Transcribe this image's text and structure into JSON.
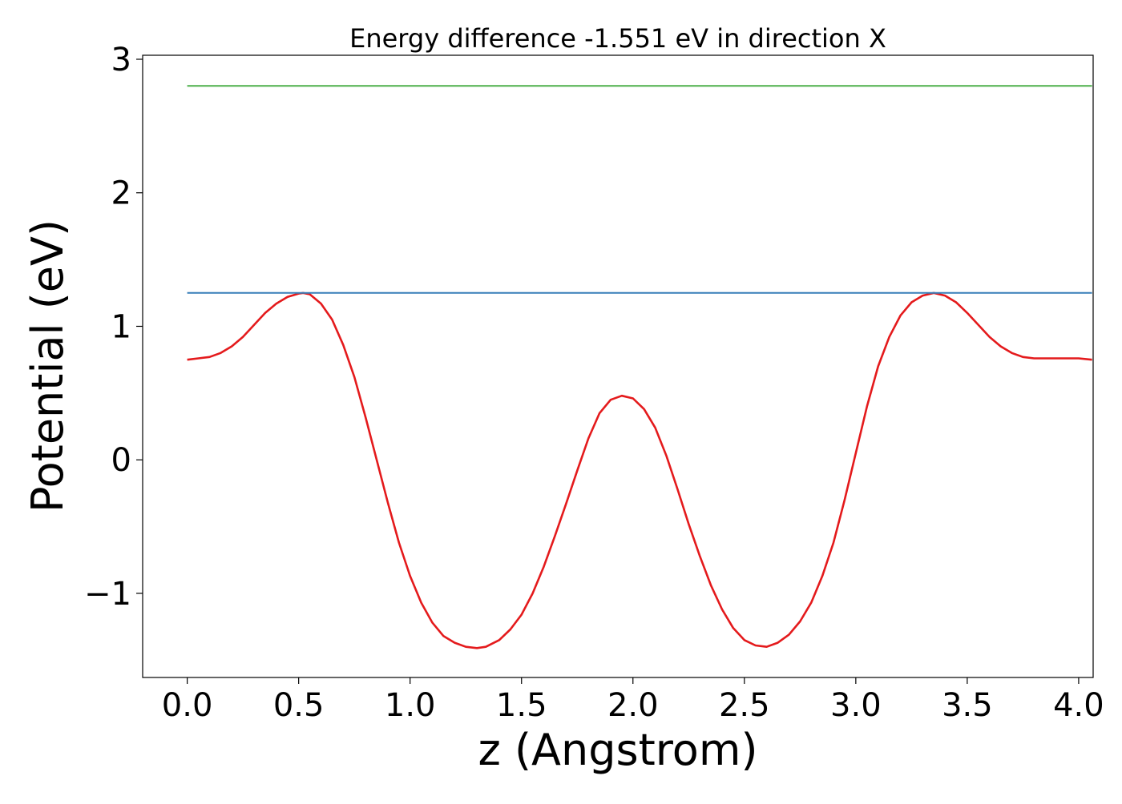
{
  "chart_data": {
    "type": "line",
    "title": "Energy difference -1.551 eV in direction X",
    "xlabel": "z (Angstrom)",
    "ylabel": "Potential (eV)",
    "xlim": [
      -0.2,
      4.065
    ],
    "ylim": [
      -1.63,
      3.03
    ],
    "xticks": [
      0.0,
      0.5,
      1.0,
      1.5,
      2.0,
      2.5,
      3.0,
      3.5,
      4.0
    ],
    "xtick_labels": [
      "0.0",
      "0.5",
      "1.0",
      "1.5",
      "2.0",
      "2.5",
      "3.0",
      "3.5",
      "4.0"
    ],
    "yticks": [
      -1,
      0,
      1,
      2,
      3
    ],
    "ytick_labels": [
      "−1",
      "0",
      "1",
      "2",
      "3"
    ],
    "grid": false,
    "legend": "none",
    "series": [
      {
        "color": "#e41a1c",
        "x": [
          0.0,
          0.05,
          0.1,
          0.15,
          0.2,
          0.25,
          0.3,
          0.35,
          0.4,
          0.45,
          0.5,
          0.52,
          0.55,
          0.6,
          0.65,
          0.7,
          0.75,
          0.8,
          0.85,
          0.9,
          0.95,
          1.0,
          1.05,
          1.1,
          1.15,
          1.2,
          1.25,
          1.3,
          1.34,
          1.4,
          1.45,
          1.5,
          1.55,
          1.6,
          1.65,
          1.7,
          1.75,
          1.8,
          1.85,
          1.9,
          1.95,
          2.0,
          2.05,
          2.1,
          2.15,
          2.2,
          2.25,
          2.3,
          2.35,
          2.4,
          2.45,
          2.5,
          2.55,
          2.6,
          2.65,
          2.7,
          2.75,
          2.8,
          2.85,
          2.9,
          2.95,
          3.0,
          3.05,
          3.1,
          3.15,
          3.2,
          3.25,
          3.3,
          3.35,
          3.4,
          3.45,
          3.5,
          3.55,
          3.6,
          3.65,
          3.7,
          3.75,
          3.8,
          3.85,
          3.9,
          3.95,
          4.0,
          4.06
        ],
        "y": [
          0.75,
          0.76,
          0.77,
          0.8,
          0.85,
          0.92,
          1.01,
          1.1,
          1.17,
          1.22,
          1.245,
          1.25,
          1.24,
          1.17,
          1.05,
          0.86,
          0.62,
          0.32,
          0.0,
          -0.32,
          -0.62,
          -0.87,
          -1.07,
          -1.22,
          -1.32,
          -1.37,
          -1.4,
          -1.41,
          -1.4,
          -1.35,
          -1.27,
          -1.16,
          -1.0,
          -0.8,
          -0.57,
          -0.33,
          -0.08,
          0.16,
          0.35,
          0.45,
          0.48,
          0.46,
          0.38,
          0.24,
          0.03,
          -0.22,
          -0.48,
          -0.72,
          -0.94,
          -1.12,
          -1.26,
          -1.35,
          -1.39,
          -1.4,
          -1.37,
          -1.31,
          -1.21,
          -1.07,
          -0.87,
          -0.62,
          -0.3,
          0.05,
          0.4,
          0.7,
          0.92,
          1.08,
          1.18,
          1.23,
          1.25,
          1.23,
          1.18,
          1.1,
          1.01,
          0.92,
          0.85,
          0.8,
          0.77,
          0.76,
          0.76,
          0.76,
          0.76,
          0.76,
          0.75
        ]
      },
      {
        "color": "#377eb8",
        "x": [
          0.0,
          4.06
        ],
        "y": [
          1.25,
          1.25
        ]
      },
      {
        "color": "#4daf4a",
        "x": [
          0.0,
          4.06
        ],
        "y": [
          2.8,
          2.8
        ]
      }
    ]
  }
}
